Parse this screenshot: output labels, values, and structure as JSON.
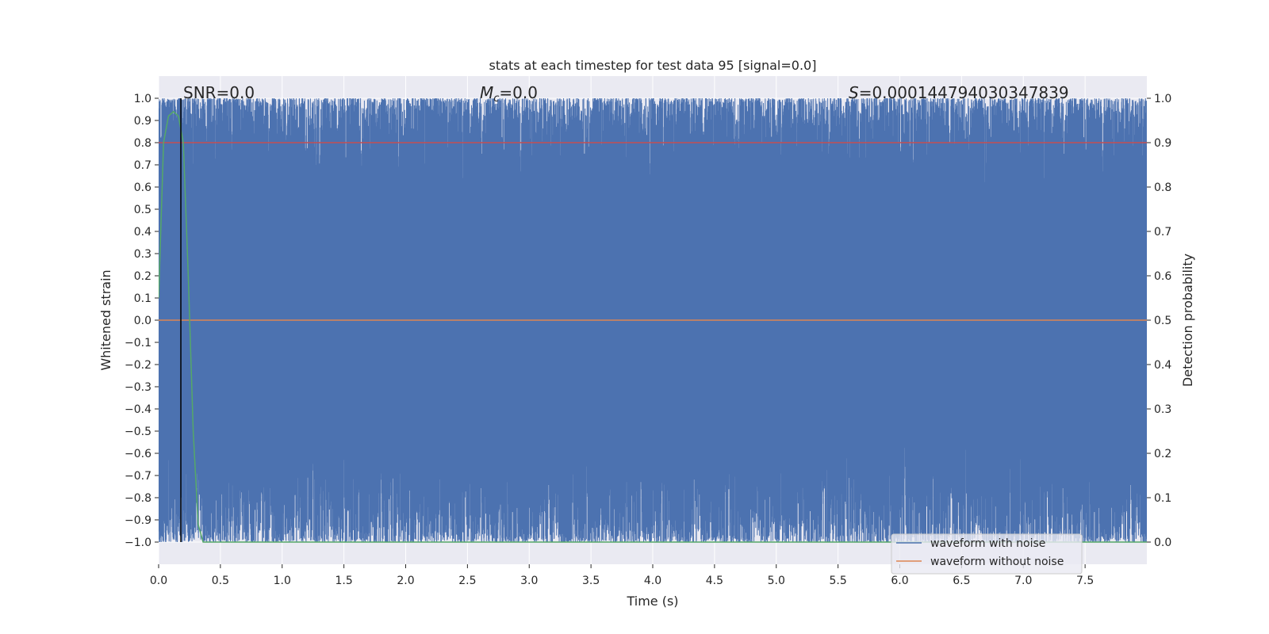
{
  "chart_data": {
    "type": "line",
    "title": "stats at each timestep for test data 95 [signal=0.0]",
    "xlabel": "Time (s)",
    "ylabel": "Whitened strain",
    "y2label": "Detection probability",
    "xlim": [
      0.0,
      8.0
    ],
    "ylim": [
      -1.1,
      1.1
    ],
    "y2lim": [
      -0.05,
      1.05
    ],
    "xticks": [
      0.0,
      0.5,
      1.0,
      1.5,
      2.0,
      2.5,
      3.0,
      3.5,
      4.0,
      4.5,
      5.0,
      5.5,
      6.0,
      6.5,
      7.0,
      7.5
    ],
    "xtick_labels": [
      "0.0",
      "0.5",
      "1.0",
      "1.5",
      "2.0",
      "2.5",
      "3.0",
      "3.5",
      "4.0",
      "4.5",
      "5.0",
      "5.5",
      "6.0",
      "6.5",
      "7.0",
      "7.5"
    ],
    "yticks": [
      1.0,
      0.9,
      0.8,
      0.7,
      0.6,
      0.5,
      0.4,
      0.3,
      0.2,
      0.1,
      0.0,
      -0.1,
      -0.2,
      -0.3,
      -0.4,
      -0.5,
      -0.6,
      -0.7,
      -0.8,
      -0.9,
      -1.0
    ],
    "ytick_labels": [
      "1.0",
      "0.9",
      "0.8",
      "0.7",
      "0.6",
      "0.5",
      "0.4",
      "0.3",
      "0.2",
      "0.1",
      "0.0",
      "−0.1",
      "−0.2",
      "−0.3",
      "−0.4",
      "−0.5",
      "−0.6",
      "−0.7",
      "−0.8",
      "−0.9",
      "−1.0"
    ],
    "y2ticks": [
      1.0,
      0.9,
      0.8,
      0.7,
      0.6,
      0.5,
      0.4,
      0.3,
      0.2,
      0.1,
      0.0
    ],
    "y2tick_labels": [
      "1.0",
      "0.9",
      "0.8",
      "0.7",
      "0.6",
      "0.5",
      "0.4",
      "0.3",
      "0.2",
      "0.1",
      "0.0"
    ],
    "annotations": {
      "snr": "SNR=0.0",
      "mc_symbol": "M",
      "mc_sub": "c",
      "mc_value": "=0.0",
      "s_symbol": "S",
      "s_value": "=0.000144794030347839"
    },
    "vline_x": 0.18,
    "series": [
      {
        "name": "waveform with noise",
        "axis": "left",
        "color": "#4c72b0",
        "description": "dense noise filling approx. -1.0 to 1.0 across 0-8 s",
        "band_top_min": 0.6,
        "band_bottom_max": -0.55,
        "sample_rate": 1100
      },
      {
        "name": "waveform without noise",
        "axis": "left",
        "color": "#dd8452",
        "x": [
          0.0,
          8.0
        ],
        "y": [
          0.0,
          0.0
        ]
      },
      {
        "name": "detection threshold",
        "axis": "right",
        "color": "#c44e52",
        "x": [
          0.0,
          8.0
        ],
        "y": [
          0.9,
          0.9
        ]
      },
      {
        "name": "detection probability",
        "axis": "right",
        "color": "#55a868",
        "x": [
          0.0,
          0.04,
          0.08,
          0.12,
          0.16,
          0.2,
          0.24,
          0.28,
          0.32,
          0.36,
          0.4,
          8.0
        ],
        "y": [
          0.55,
          0.9,
          0.96,
          0.97,
          0.96,
          0.9,
          0.6,
          0.25,
          0.04,
          0.0,
          0.0,
          0.0
        ]
      }
    ],
    "legend": {
      "position": "lower-right",
      "entries": [
        "waveform with noise",
        "waveform without noise"
      ]
    },
    "colors": {
      "background": "#eaeaf2",
      "grid": "#ffffff",
      "noise": "#4c72b0",
      "clean": "#dd8452",
      "threshold": "#c44e52",
      "probability": "#55a868",
      "vline": "#000000"
    }
  }
}
